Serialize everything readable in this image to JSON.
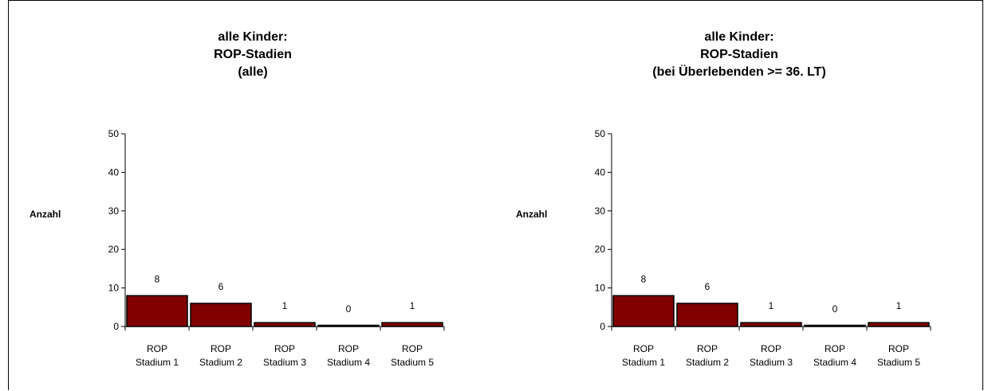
{
  "chart_data": [
    {
      "type": "bar",
      "title_lines": [
        "alle Kinder:",
        "ROP-Stadien",
        "(alle)"
      ],
      "ylabel": "Anzahl",
      "xlabel": "",
      "ylim": [
        0,
        50
      ],
      "yticks": [
        0,
        10,
        20,
        30,
        40,
        50
      ],
      "categories": [
        [
          "ROP",
          "Stadium 1"
        ],
        [
          "ROP",
          "Stadium 2"
        ],
        [
          "ROP",
          "Stadium 3"
        ],
        [
          "ROP",
          "Stadium 4"
        ],
        [
          "ROP",
          "Stadium 5"
        ]
      ],
      "values": [
        8,
        6,
        1,
        0,
        1
      ],
      "bar_color": "#800000",
      "grid": false,
      "legend": "none"
    },
    {
      "type": "bar",
      "title_lines": [
        "alle Kinder:",
        "ROP-Stadien",
        "(bei Überlebenden >= 36. LT)"
      ],
      "ylabel": "Anzahl",
      "xlabel": "",
      "ylim": [
        0,
        50
      ],
      "yticks": [
        0,
        10,
        20,
        30,
        40,
        50
      ],
      "categories": [
        [
          "ROP",
          "Stadium 1"
        ],
        [
          "ROP",
          "Stadium 2"
        ],
        [
          "ROP",
          "Stadium 3"
        ],
        [
          "ROP",
          "Stadium 4"
        ],
        [
          "ROP",
          "Stadium 5"
        ]
      ],
      "values": [
        8,
        6,
        1,
        0,
        1
      ],
      "bar_color": "#800000",
      "grid": false,
      "legend": "none"
    }
  ]
}
